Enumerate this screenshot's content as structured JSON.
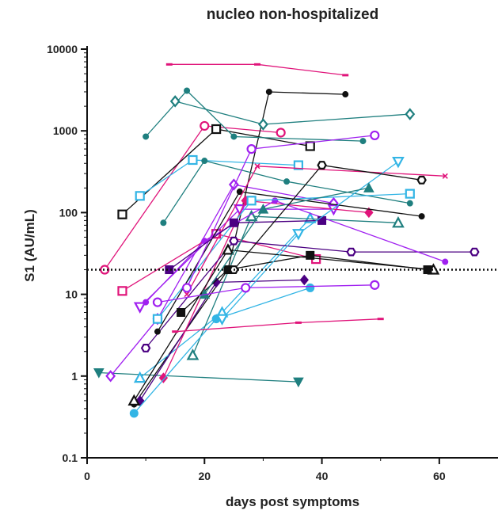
{
  "chart_data": {
    "type": "line",
    "title": "nucleo non-hospitalized",
    "xlabel": "days post symptoms",
    "ylabel": "S1 (AU/mL)",
    "xlim": [
      0,
      70
    ],
    "ylim": [
      0.1,
      10000
    ],
    "yscale": "log",
    "xticks": [
      0,
      20,
      40,
      60
    ],
    "xtick_labels": [
      "0",
      "20",
      "40",
      "60"
    ],
    "yticks": [
      0.1,
      1,
      10,
      100,
      1000,
      10000
    ],
    "ytick_labels": [
      "0.1",
      "1",
      "10",
      "100",
      "1000",
      "10000"
    ],
    "threshold": 20,
    "grid": false,
    "legend": "none",
    "series": [
      {
        "color": "#1f7f7f",
        "marker": "triangle-down",
        "points": [
          [
            2,
            1.1
          ],
          [
            36,
            0.85
          ]
        ]
      },
      {
        "color": "#a020f0",
        "marker": "diamond-open",
        "points": [
          [
            4,
            1.0
          ],
          [
            12,
            5
          ],
          [
            25,
            220
          ],
          [
            42,
            130
          ]
        ]
      },
      {
        "color": "#e0147a",
        "marker": "circle-open",
        "points": [
          [
            3,
            20
          ],
          [
            20,
            1150
          ],
          [
            33,
            950
          ]
        ]
      },
      {
        "color": "#111111",
        "marker": "square-open",
        "points": [
          [
            6,
            95
          ],
          [
            22,
            1050
          ],
          [
            38,
            650
          ]
        ]
      },
      {
        "color": "#e0147a",
        "marker": "square-open",
        "points": [
          [
            6,
            11
          ],
          [
            22,
            55
          ],
          [
            39,
            27
          ]
        ]
      },
      {
        "color": "#33b5e5",
        "marker": "square-open",
        "points": [
          [
            9,
            160
          ],
          [
            18,
            440
          ],
          [
            36,
            380
          ]
        ]
      },
      {
        "color": "#111111",
        "marker": "dot",
        "points": [
          [
            8,
            0.45
          ],
          [
            24,
            20
          ],
          [
            31,
            3000
          ],
          [
            44,
            2800
          ]
        ]
      },
      {
        "color": "#1f7f7f",
        "marker": "dot",
        "points": [
          [
            10,
            850
          ],
          [
            17,
            3100
          ],
          [
            25,
            850
          ],
          [
            47,
            750
          ]
        ]
      },
      {
        "color": "#e0147a",
        "marker": "dash",
        "points": [
          [
            14,
            6500
          ],
          [
            29,
            6500
          ],
          [
            44,
            4800
          ]
        ]
      },
      {
        "color": "#1f7f7f",
        "marker": "diamond-open",
        "points": [
          [
            15,
            2300
          ],
          [
            30,
            1200
          ],
          [
            55,
            1600
          ]
        ]
      },
      {
        "color": "#33b5e5",
        "marker": "triangle-open",
        "points": [
          [
            9,
            0.95
          ],
          [
            23,
            6
          ],
          [
            38,
            85
          ]
        ]
      },
      {
        "color": "#4b0082",
        "marker": "diamond",
        "points": [
          [
            9,
            0.5
          ],
          [
            22,
            14
          ],
          [
            37,
            15
          ]
        ]
      },
      {
        "color": "#a020f0",
        "marker": "triangle-down-open",
        "points": [
          [
            9,
            7
          ],
          [
            26,
            110
          ],
          [
            42,
            110
          ]
        ]
      },
      {
        "color": "#1f7f7f",
        "marker": "triangle-open",
        "points": [
          [
            18,
            1.8
          ],
          [
            28,
            90
          ],
          [
            53,
            75
          ]
        ]
      },
      {
        "color": "#e0147a",
        "marker": "diamond",
        "points": [
          [
            13,
            0.95
          ],
          [
            27,
            140
          ],
          [
            48,
            100
          ]
        ]
      },
      {
        "color": "#4b0082",
        "marker": "hexagon-open",
        "points": [
          [
            10,
            2.2
          ],
          [
            25,
            45
          ],
          [
            45,
            33
          ],
          [
            66,
            33
          ]
        ]
      },
      {
        "color": "#111111",
        "marker": "triangle-open",
        "points": [
          [
            8,
            0.5
          ],
          [
            24,
            35
          ],
          [
            59,
            20
          ]
        ]
      },
      {
        "color": "#33b5e5",
        "marker": "circle",
        "points": [
          [
            8,
            0.35
          ],
          [
            22,
            5
          ],
          [
            38,
            12
          ]
        ]
      },
      {
        "color": "#e0147a",
        "marker": "dash",
        "points": [
          [
            15,
            3.5
          ],
          [
            36,
            4.5
          ],
          [
            50,
            5
          ]
        ]
      },
      {
        "color": "#111111",
        "marker": "square",
        "points": [
          [
            16,
            6
          ],
          [
            24,
            20
          ],
          [
            38,
            30
          ],
          [
            58,
            20
          ]
        ]
      },
      {
        "color": "#a020f0",
        "marker": "dot",
        "points": [
          [
            10,
            8
          ],
          [
            20,
            45
          ],
          [
            32,
            140
          ],
          [
            61,
            25
          ]
        ]
      },
      {
        "color": "#1f7f7f",
        "marker": "dot",
        "points": [
          [
            13,
            75
          ],
          [
            20,
            430
          ],
          [
            34,
            240
          ],
          [
            55,
            130
          ]
        ]
      },
      {
        "color": "#33b5e5",
        "marker": "square-open",
        "points": [
          [
            12,
            5
          ],
          [
            28,
            140
          ],
          [
            55,
            170
          ]
        ]
      },
      {
        "color": "#111111",
        "marker": "dot",
        "points": [
          [
            12,
            3.5
          ],
          [
            26,
            180
          ],
          [
            57,
            90
          ]
        ]
      },
      {
        "color": "#e0147a",
        "marker": "x",
        "points": [
          [
            17,
            10
          ],
          [
            29,
            370
          ],
          [
            61,
            280
          ]
        ]
      },
      {
        "color": "#a020f0",
        "marker": "circle-open",
        "points": [
          [
            17,
            12
          ],
          [
            28,
            600
          ],
          [
            49,
            880
          ]
        ]
      },
      {
        "color": "#4b0082",
        "marker": "square",
        "points": [
          [
            14,
            20
          ],
          [
            25,
            75
          ],
          [
            40,
            80
          ]
        ]
      },
      {
        "color": "#33b5e5",
        "marker": "triangle-down-open",
        "points": [
          [
            23,
            5
          ],
          [
            36,
            55
          ],
          [
            53,
            420
          ]
        ]
      },
      {
        "color": "#1f7f7f",
        "marker": "triangle",
        "points": [
          [
            20,
            10
          ],
          [
            30,
            110
          ],
          [
            48,
            200
          ]
        ]
      },
      {
        "color": "#111111",
        "marker": "hexagon-open",
        "points": [
          [
            25,
            20
          ],
          [
            40,
            380
          ],
          [
            57,
            250
          ]
        ]
      },
      {
        "color": "#a020f0",
        "marker": "circle-open",
        "points": [
          [
            12,
            8
          ],
          [
            27,
            12
          ],
          [
            49,
            13
          ]
        ]
      }
    ]
  }
}
